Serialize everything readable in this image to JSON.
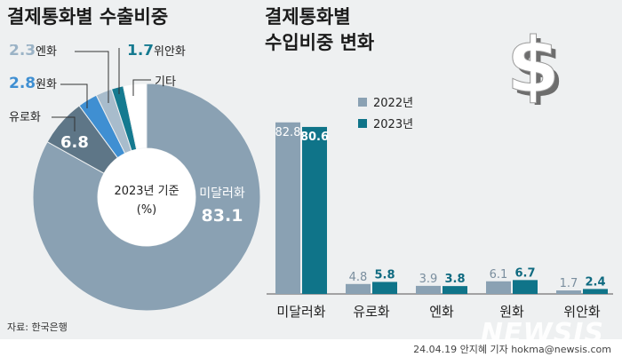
{
  "charts": {
    "left_title": "결제통화별 수출비중",
    "right_title_line1": "결제통화별",
    "right_title_line2": "수입비중 변화",
    "source": "자료: 한국은행",
    "footer": "24.04.19 안지혜 기자 hokma@newsis.com",
    "watermark": "NEWSIS",
    "icon": "dollar-sign-icon"
  },
  "chart_data": [
    {
      "type": "pie",
      "center_label": "2023년 기준",
      "center_unit": "(%)",
      "slices": [
        {
          "label": "미달러화",
          "value": 83.1,
          "color": "#8aa1b3"
        },
        {
          "label": "유로화",
          "value": 6.8,
          "color": "#5e7687"
        },
        {
          "label": "원화",
          "value": 2.8,
          "color": "#3f8fd2"
        },
        {
          "label": "엔화",
          "value": 2.3,
          "color": "#a8bccc"
        },
        {
          "label": "위안화",
          "value": 1.7,
          "color": "#157a90"
        },
        {
          "label": "기타",
          "value": 3.3,
          "color": "#ffffff"
        }
      ],
      "label_colors": {
        "엔화": "#9bb3c6",
        "원화": "#3f8fd2",
        "위안화": "#157a90"
      }
    },
    {
      "type": "bar",
      "categories": [
        "미달러화",
        "유로화",
        "엔화",
        "원화",
        "위안화"
      ],
      "series": [
        {
          "name": "2022년",
          "values": [
            82.8,
            4.8,
            3.9,
            6.1,
            1.7
          ],
          "color": "#8aa1b3"
        },
        {
          "name": "2023년",
          "values": [
            80.6,
            5.8,
            3.8,
            6.7,
            2.4
          ],
          "color": "#0f7489"
        }
      ],
      "ylim": [
        0,
        90
      ],
      "legend": "top-right"
    }
  ]
}
